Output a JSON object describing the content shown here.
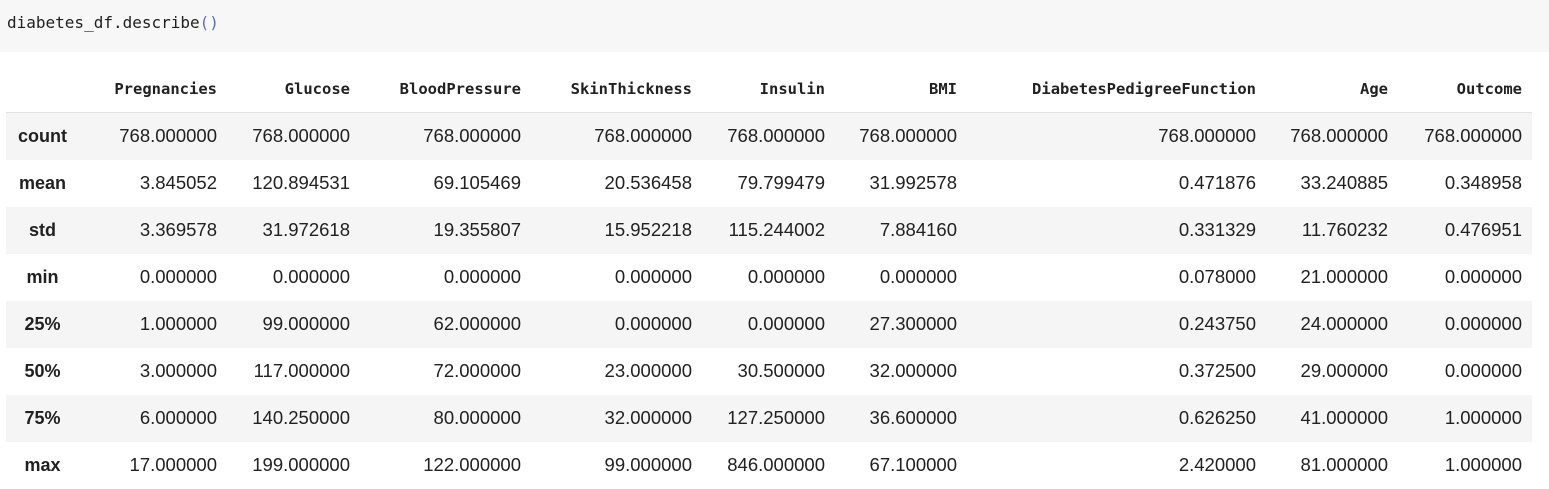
{
  "code": {
    "text": "diabetes_df.describe",
    "open_paren": "(",
    "close_paren": ")"
  },
  "table": {
    "columns": [
      "Pregnancies",
      "Glucose",
      "BloodPressure",
      "SkinThickness",
      "Insulin",
      "BMI",
      "DiabetesPedigreeFunction",
      "Age",
      "Outcome"
    ],
    "rows": [
      {
        "label": "count",
        "values": [
          "768.000000",
          "768.000000",
          "768.000000",
          "768.000000",
          "768.000000",
          "768.000000",
          "768.000000",
          "768.000000",
          "768.000000"
        ]
      },
      {
        "label": "mean",
        "values": [
          "3.845052",
          "120.894531",
          "69.105469",
          "20.536458",
          "79.799479",
          "31.992578",
          "0.471876",
          "33.240885",
          "0.348958"
        ]
      },
      {
        "label": "std",
        "values": [
          "3.369578",
          "31.972618",
          "19.355807",
          "15.952218",
          "115.244002",
          "7.884160",
          "0.331329",
          "11.760232",
          "0.476951"
        ]
      },
      {
        "label": "min",
        "values": [
          "0.000000",
          "0.000000",
          "0.000000",
          "0.000000",
          "0.000000",
          "0.000000",
          "0.078000",
          "21.000000",
          "0.000000"
        ]
      },
      {
        "label": "25%",
        "values": [
          "1.000000",
          "99.000000",
          "62.000000",
          "0.000000",
          "0.000000",
          "27.300000",
          "0.243750",
          "24.000000",
          "0.000000"
        ]
      },
      {
        "label": "50%",
        "values": [
          "3.000000",
          "117.000000",
          "72.000000",
          "23.000000",
          "30.500000",
          "32.000000",
          "0.372500",
          "29.000000",
          "0.000000"
        ]
      },
      {
        "label": "75%",
        "values": [
          "6.000000",
          "140.250000",
          "80.000000",
          "32.000000",
          "127.250000",
          "36.600000",
          "0.626250",
          "41.000000",
          "1.000000"
        ]
      },
      {
        "label": "max",
        "values": [
          "17.000000",
          "199.000000",
          "122.000000",
          "99.000000",
          "846.000000",
          "67.100000",
          "2.420000",
          "81.000000",
          "1.000000"
        ]
      }
    ]
  },
  "colors": {
    "code_background": "#f7f7f7",
    "row_stripe": "#f5f5f5",
    "paren": "#5c6bc0",
    "text": "#212121"
  }
}
